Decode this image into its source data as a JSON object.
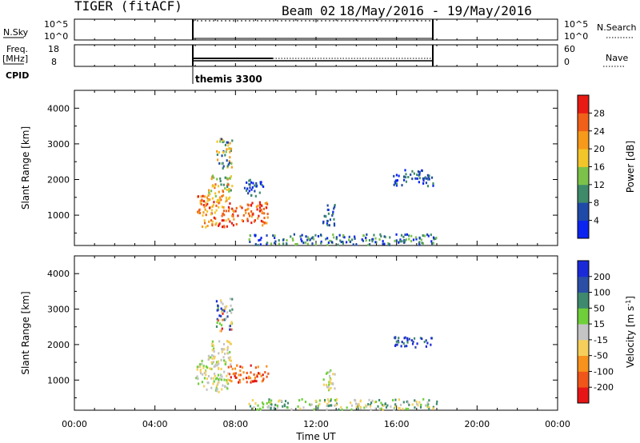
{
  "header": {
    "radar": "TIGER (fitACF)",
    "beam": "Beam 02",
    "date_range": "18/May/2016 - 19/May/2016"
  },
  "top_panels": {
    "nsky_label": "N.Sky",
    "nsky_ticks": [
      "10^5",
      "10^0"
    ],
    "nsearch_label": "N.Search",
    "freq_label_1": "Freq.",
    "freq_label_2": "[MHz]",
    "freq_ticks": [
      "18",
      "8"
    ],
    "nave_label": "Nave",
    "nave_ticks": [
      "60",
      "0"
    ],
    "cpid_label": "CPID",
    "cpid_value": "themis 3300"
  },
  "time_axis": {
    "label": "Time UT",
    "ticks": [
      "00:00",
      "04:00",
      "08:00",
      "12:00",
      "16:00",
      "20:00",
      "00:00"
    ]
  },
  "colors": {
    "power": [
      "#0b24f0",
      "#1f4aa8",
      "#3e8a6a",
      "#7cc24a",
      "#f2c62a",
      "#f79a1a",
      "#f06018",
      "#e81a14"
    ],
    "velocity": [
      "#e61616",
      "#f0561a",
      "#f7921c",
      "#f5cf5a",
      "#c4c4c4",
      "#6fcf3a",
      "#3f8a6e",
      "#2a4fa5",
      "#1a2ad9"
    ]
  },
  "chart_data": [
    {
      "type": "heatmap",
      "title": "",
      "xlabel": "Time UT",
      "ylabel": "Slant Range [km]",
      "xlim": [
        "00:00",
        "24:00"
      ],
      "ylim": [
        150,
        4500
      ],
      "yticks": [
        "1000",
        "2000",
        "3000",
        "4000"
      ],
      "colorbar": {
        "label": "Power [dB]",
        "ticks": [
          "28",
          "24",
          "20",
          "16",
          "12",
          "8",
          "4"
        ],
        "range": [
          0,
          32
        ]
      },
      "data_window": [
        "06:00",
        "18:00"
      ],
      "echo_regions": [
        {
          "t": [
            6.0,
            7.6
          ],
          "r": [
            650,
            1550
          ],
          "value": "20-32"
        },
        {
          "t": [
            7.6,
            9.6
          ],
          "r": [
            700,
            1350
          ],
          "value": "24-32"
        },
        {
          "t": [
            6.6,
            7.8
          ],
          "r": [
            1400,
            2100
          ],
          "value": "12-28"
        },
        {
          "t": [
            7.0,
            7.8
          ],
          "r": [
            2300,
            3200
          ],
          "value": "8-24"
        },
        {
          "t": [
            8.4,
            9.4
          ],
          "r": [
            1500,
            2000
          ],
          "value": "4-12"
        },
        {
          "t": [
            12.3,
            12.9
          ],
          "r": [
            700,
            1300
          ],
          "value": "4-12"
        },
        {
          "t": [
            15.8,
            17.8
          ],
          "r": [
            1800,
            2250
          ],
          "value": "4-12"
        },
        {
          "t": [
            8.6,
            18.0
          ],
          "r": [
            150,
            450
          ],
          "value": "4-16"
        }
      ]
    },
    {
      "type": "heatmap",
      "title": "",
      "xlabel": "Time UT",
      "ylabel": "Slant Range [km]",
      "xlim": [
        "00:00",
        "24:00"
      ],
      "ylim": [
        150,
        4500
      ],
      "yticks": [
        "1000",
        "2000",
        "3000",
        "4000"
      ],
      "colorbar": {
        "label": "Velocity [m s^-1]",
        "ticks": [
          "200",
          "100",
          "50",
          "15",
          "-15",
          "-50",
          "-100",
          "-200"
        ],
        "range": [
          -250,
          250
        ]
      },
      "data_window": [
        "06:00",
        "18:00"
      ],
      "echo_regions": [
        {
          "t": [
            6.0,
            7.6
          ],
          "r": [
            650,
            1550
          ],
          "value": "-15 to 15"
        },
        {
          "t": [
            7.6,
            9.6
          ],
          "r": [
            900,
            1400
          ],
          "value": "-200 to -100"
        },
        {
          "t": [
            6.6,
            7.8
          ],
          "r": [
            1400,
            2100
          ],
          "value": "-15 to 15"
        },
        {
          "t": [
            7.0,
            7.8
          ],
          "r": [
            2300,
            3300
          ],
          "value": "-200 to 200"
        },
        {
          "t": [
            12.3,
            12.9
          ],
          "r": [
            700,
            1300
          ],
          "value": "-15 to 15"
        },
        {
          "t": [
            15.8,
            17.8
          ],
          "r": [
            1900,
            2200
          ],
          "value": "50 to 200"
        },
        {
          "t": [
            8.6,
            18.0
          ],
          "r": [
            150,
            450
          ],
          "value": "-50 to 50"
        }
      ]
    }
  ]
}
